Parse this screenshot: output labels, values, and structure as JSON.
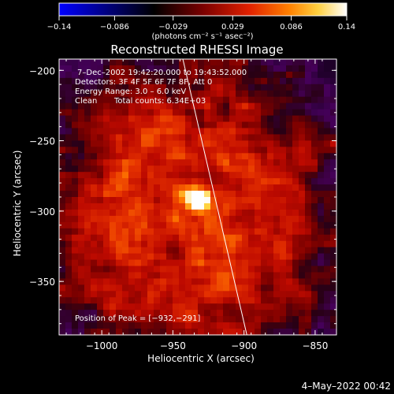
{
  "chart_data": {
    "type": "heatmap",
    "title": "Reconstructed RHESSI Image",
    "xlabel": "Heliocentric X (arcsec)",
    "ylabel": "Heliocentric Y (arcsec)",
    "xlim": [
      -1030,
      -835
    ],
    "ylim": [
      -388,
      -192
    ],
    "xticks": [
      -1000,
      -950,
      -900,
      -850
    ],
    "xtick_labels": [
      "−1000",
      "−950",
      "−900",
      "−850"
    ],
    "yticks": [
      -350,
      -300,
      -250,
      -200
    ],
    "ytick_labels": [
      "−350",
      "−300",
      "−250",
      "−200"
    ],
    "colorbar": {
      "range": [
        -0.14,
        0.14
      ],
      "ticks": [
        -0.14,
        -0.086,
        -0.029,
        0.029,
        0.086,
        0.14
      ],
      "tick_labels": [
        "−0.14",
        "−0.086",
        "−0.029",
        "0.029",
        "0.086",
        "0.14"
      ],
      "units_label": "(photons cm⁻² s⁻¹ asec⁻²)",
      "colormap": [
        "#0000ff",
        "#000000",
        "#7a0000",
        "#e02000",
        "#ff8000",
        "#ffd040",
        "#ffffff"
      ]
    },
    "annotations": {
      "time_range": "7–Dec–2002 19:42:20.000 to 19:43:52.000",
      "detectors": "Detectors: 3F 4F 5F 6F 7F 8F, Att 0",
      "energy": "Energy Range: 3.0 – 6.0 keV",
      "clean": "Clean",
      "total_counts": "Total counts: 6.34E+03",
      "peak": "Position of Peak = [−932,−291]"
    },
    "peak": {
      "x": -932,
      "y": -291,
      "value": 0.14
    },
    "limb_line": {
      "x": [
        -943,
        -898
      ],
      "y": [
        -192,
        -388
      ]
    },
    "grid": false
  },
  "footer": {
    "timestamp": "4–May–2022 00:42"
  },
  "colors": {
    "background": "#000000",
    "text": "#ffffff",
    "axes": "#ffffff"
  }
}
